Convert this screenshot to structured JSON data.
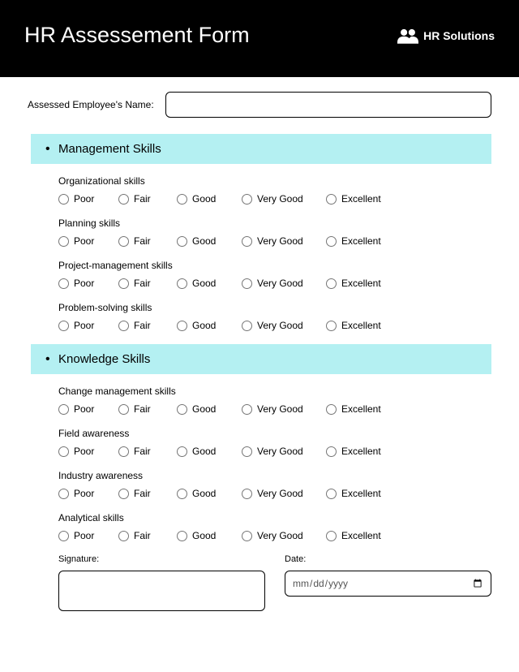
{
  "header": {
    "title": "HR Assessement Form",
    "brand": "HR Solutions"
  },
  "employee_name": {
    "label": "Assessed Employee's Name:",
    "value": ""
  },
  "rating_options": [
    "Poor",
    "Fair",
    "Good",
    "Very Good",
    "Excellent"
  ],
  "sections": [
    {
      "title": "Management Skills",
      "questions": [
        "Organizational skills",
        "Planning skills",
        "Project-management skills",
        "Problem-solving skills"
      ]
    },
    {
      "title": "Knowledge Skills",
      "questions": [
        "Change management skills",
        "Field awareness",
        "Industry awareness",
        "Analytical skills"
      ]
    }
  ],
  "signature": {
    "label": "Signature:"
  },
  "date": {
    "label": "Date:",
    "placeholder": "mm/dd/yyyy"
  },
  "colors": {
    "header_bg": "#000000",
    "section_bg": "#b4f0f2",
    "text": "#000000"
  }
}
